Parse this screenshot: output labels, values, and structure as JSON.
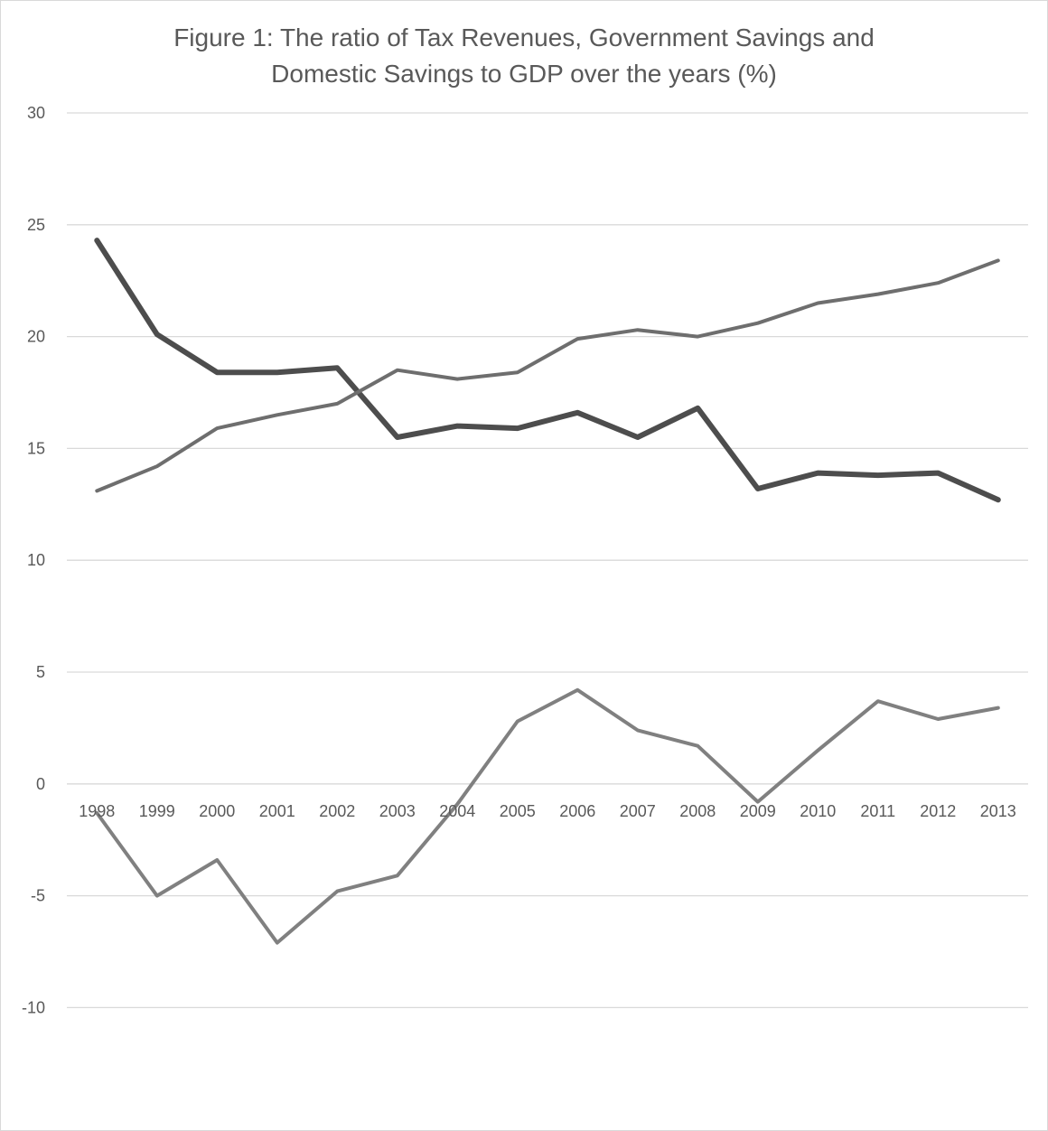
{
  "chart_data": {
    "type": "line",
    "title_lines": [
      "Figure 1: The ratio of Tax Revenues, Government Savings and",
      "Domestic Savings to GDP over the years (%)"
    ],
    "xlabel": "",
    "ylabel": "",
    "ylim": [
      -15,
      30
    ],
    "yticks": [
      30,
      25,
      20,
      15,
      10,
      5,
      0,
      -5,
      -10
    ],
    "grid": true,
    "legend": "none",
    "categories": [
      "1998",
      "1999",
      "2000",
      "2001",
      "2002",
      "2003",
      "2004",
      "2005",
      "2006",
      "2007",
      "2008",
      "2009",
      "2010",
      "2011",
      "2012",
      "2013"
    ],
    "series": [
      {
        "color": "#4d4d4d",
        "values": [
          24.3,
          20.1,
          18.4,
          18.4,
          18.6,
          15.5,
          16.0,
          15.9,
          16.6,
          15.5,
          16.8,
          13.2,
          13.9,
          13.8,
          13.9,
          12.7
        ]
      },
      {
        "color": "#6e6e6e",
        "values": [
          13.1,
          14.2,
          15.9,
          16.5,
          17.0,
          18.5,
          18.1,
          18.4,
          19.9,
          20.3,
          20.0,
          20.6,
          21.5,
          21.9,
          22.4,
          23.4
        ]
      },
      {
        "color": "#808080",
        "values": [
          -1.3,
          -5.0,
          -3.4,
          -7.1,
          -4.8,
          -4.1,
          -0.9,
          2.8,
          4.2,
          2.4,
          1.7,
          -0.8,
          1.5,
          3.7,
          2.9,
          3.4
        ]
      }
    ]
  }
}
